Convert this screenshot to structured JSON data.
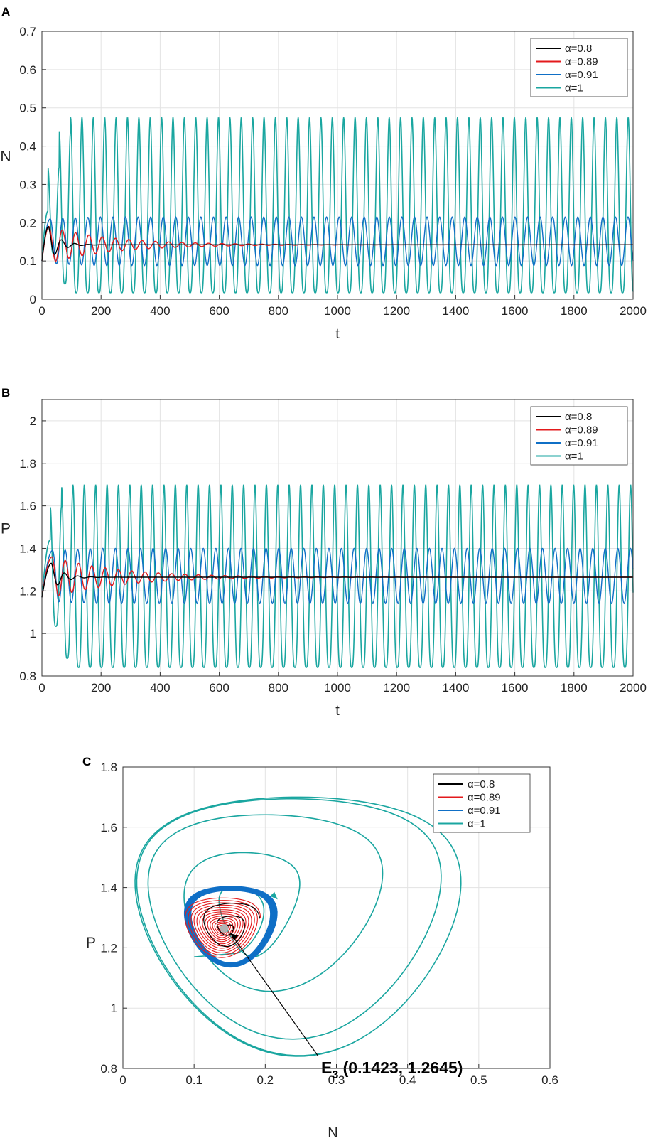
{
  "colors": {
    "alpha_0_8": "#000000",
    "alpha_0_89": "#e31a1c",
    "alpha_0_91": "#0f6fc6",
    "alpha_1": "#1aa6a0",
    "grid": "#e3e3e3",
    "axis": "#333333",
    "equilibrium_marker": "#b3b3b3"
  },
  "chart_data": [
    {
      "panel_label": "A",
      "type": "line",
      "xlabel": "t",
      "ylabel": "N",
      "xlim": [
        0,
        2000
      ],
      "ylim": [
        0,
        0.7
      ],
      "xticks": [
        0,
        200,
        400,
        600,
        800,
        1000,
        1200,
        1400,
        1600,
        1800,
        2000
      ],
      "yticks": [
        0,
        0.1,
        0.2,
        0.3,
        0.4,
        0.5,
        0.6,
        0.7
      ],
      "grid": true,
      "legend_position": "top-right",
      "legend_entries": [
        "α=0.8",
        "α=0.89",
        "α=0.91",
        "α=1"
      ],
      "series": [
        {
          "name": "α=0.8",
          "color": "alpha_0_8",
          "initial": 0.1,
          "equilibrium": 0.1423,
          "first_peak": 0.19,
          "first_peak_t": 22,
          "period": 45,
          "final_amplitude": 0,
          "settle_t": 110
        },
        {
          "name": "α=0.89",
          "color": "alpha_0_89",
          "initial": 0.1,
          "equilibrium": 0.1423,
          "first_peak": 0.19,
          "first_peak_t": 24,
          "period": 45,
          "final_amplitude": 0,
          "settle_t": 700
        },
        {
          "name": "α=0.91",
          "color": "alpha_0_91",
          "initial": 0.1,
          "equilibrium": 0.1423,
          "first_peak": 0.21,
          "first_peak_t": 28,
          "period": 42.5,
          "max": 0.215,
          "min": 0.088
        },
        {
          "name": "α=1",
          "color": "alpha_1",
          "initial": 0.1,
          "first_peak": 0.23,
          "first_peak_t": 20,
          "period": 38.5,
          "max": 0.475,
          "min": 0.017,
          "transient_peaks": [
            [
              20,
              0.23
            ],
            [
              62,
              0.345
            ],
            [
              100,
              0.44
            ]
          ]
        }
      ]
    },
    {
      "panel_label": "B",
      "type": "line",
      "xlabel": "t",
      "ylabel": "P",
      "xlim": [
        0,
        2000
      ],
      "ylim": [
        0.8,
        2.1
      ],
      "xticks": [
        0,
        200,
        400,
        600,
        800,
        1000,
        1200,
        1400,
        1600,
        1800,
        2000
      ],
      "yticks": [
        0.8,
        1,
        1.2,
        1.4,
        1.6,
        1.8,
        2
      ],
      "grid": true,
      "legend_position": "top-right",
      "legend_entries": [
        "α=0.8",
        "α=0.89",
        "α=0.91",
        "α=1"
      ],
      "series": [
        {
          "name": "α=0.8",
          "color": "alpha_0_8",
          "initial": 1.17,
          "equilibrium": 1.2645,
          "first_peak": 1.33,
          "first_peak_t": 32,
          "period": 45,
          "final_amplitude": 0,
          "settle_t": 120
        },
        {
          "name": "α=0.89",
          "color": "alpha_0_89",
          "initial": 1.17,
          "equilibrium": 1.2645,
          "first_peak": 1.36,
          "first_peak_t": 34,
          "period": 45,
          "final_amplitude": 0,
          "settle_t": 750
        },
        {
          "name": "α=0.91",
          "color": "alpha_0_91",
          "initial": 1.17,
          "equilibrium": 1.2645,
          "first_peak": 1.39,
          "first_peak_t": 36,
          "period": 42.5,
          "max": 1.4,
          "min": 1.14
        },
        {
          "name": "α=1",
          "color": "alpha_1",
          "initial": 1.17,
          "first_peak": 1.44,
          "first_peak_t": 28,
          "period": 38.5,
          "max": 1.7,
          "min": 0.84,
          "transient_peaks": [
            [
              28,
              1.44
            ],
            [
              68,
              1.6
            ],
            [
              106,
              1.69
            ]
          ]
        }
      ]
    },
    {
      "panel_label": "C",
      "type": "line",
      "xlabel": "N",
      "ylabel": "P",
      "xlim": [
        0,
        0.6
      ],
      "ylim": [
        0.8,
        1.8
      ],
      "xticks": [
        0,
        0.1,
        0.2,
        0.3,
        0.4,
        0.5,
        0.6
      ],
      "yticks": [
        0.8,
        1,
        1.2,
        1.4,
        1.6,
        1.8
      ],
      "grid": true,
      "legend_position": "top-right",
      "legend_entries": [
        "α=0.8",
        "α=0.89",
        "α=0.91",
        "α=1"
      ],
      "equilibrium": {
        "N": 0.1423,
        "P": 1.2645
      },
      "annotation": {
        "label": "E",
        "subscript": "3",
        "text": " (0.1423, 1.2645)",
        "points_to": [
          0.1423,
          1.2645
        ]
      },
      "start_point": {
        "N": 0.1,
        "P": 1.17
      },
      "series": [
        {
          "name": "α=0.8",
          "color": "alpha_0_8",
          "initial_amplitude": {
            "N": 0.045,
            "P": 0.095
          },
          "final_amplitude": {
            "N": 0,
            "P": 0
          }
        },
        {
          "name": "α=0.89",
          "color": "alpha_0_89",
          "initial_amplitude": {
            "N": 0.05,
            "P": 0.095
          },
          "final_amplitude": {
            "N": 0.004,
            "P": 0.008
          }
        },
        {
          "name": "α=0.91",
          "color": "alpha_0_91",
          "limit_cycle": {
            "N": [
              0.088,
              0.215
            ],
            "P": [
              1.14,
              1.4
            ]
          }
        },
        {
          "name": "α=1",
          "color": "alpha_1",
          "limit_cycle": {
            "N": [
              0.017,
              0.475
            ],
            "P": [
              0.84,
              1.7
            ]
          },
          "transient_loops": [
            {
              "N": [
                0.15,
                0.22
              ],
              "P": [
                1.17,
                1.44
              ]
            },
            {
              "N": [
                0.06,
                0.345
              ],
              "P": [
                1.05,
                1.6
              ]
            },
            {
              "N": [
                0.025,
                0.44
              ],
              "P": [
                0.89,
                1.69
              ]
            }
          ]
        }
      ]
    }
  ]
}
